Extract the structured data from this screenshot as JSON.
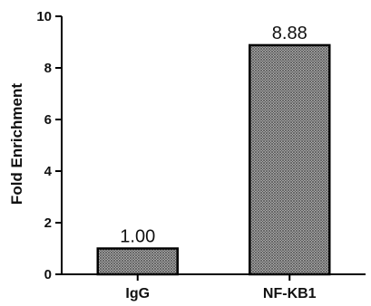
{
  "chart_data": {
    "type": "bar",
    "categories": [
      "IgG",
      "NF-KB1"
    ],
    "values": [
      1.0,
      8.88
    ],
    "data_labels": [
      "1.00",
      "8.88"
    ],
    "ylabel": "Fold Enrichment",
    "xlabel": "",
    "title": "",
    "ylim": [
      0,
      10
    ],
    "yticks": [
      0,
      2,
      4,
      6,
      8,
      10
    ],
    "grid": false,
    "bar_fill": "#9a9a9a",
    "bar_pattern": "crosshatch",
    "axis_color": "#000000"
  }
}
